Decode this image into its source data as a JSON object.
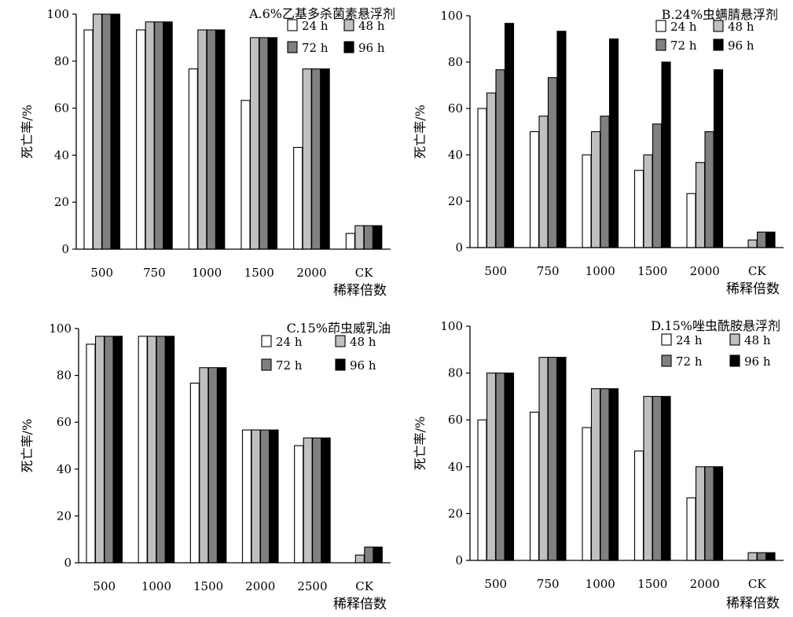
{
  "chart_data": [
    {
      "type": "bar",
      "title": "A.6%乙基多杀菌素悬浮剂",
      "xlabel": "稀释倍数",
      "ylabel": "死亡率/%",
      "ylim": [
        0,
        100
      ],
      "yticks": [
        0,
        20,
        40,
        60,
        80,
        100
      ],
      "categories": [
        "500",
        "750",
        "1000",
        "1500",
        "2000",
        "CK"
      ],
      "legend_position": "top-right",
      "series": [
        {
          "name": "24 h",
          "color": "#ffffff",
          "values": [
            93.3,
            93.3,
            76.7,
            63.3,
            43.3,
            6.7
          ]
        },
        {
          "name": "48 h",
          "color": "#c0c0c0",
          "values": [
            100,
            96.7,
            93.3,
            90,
            76.7,
            10
          ]
        },
        {
          "name": "72 h",
          "color": "#808080",
          "values": [
            100,
            96.7,
            93.3,
            90,
            76.7,
            10
          ]
        },
        {
          "name": "96 h",
          "color": "#000000",
          "values": [
            100,
            96.7,
            93.3,
            90,
            76.7,
            10
          ]
        }
      ]
    },
    {
      "type": "bar",
      "title": "B.24%虫螨腈悬浮剂",
      "xlabel": "稀释倍数",
      "ylabel": "死亡率/%",
      "ylim": [
        0,
        100
      ],
      "yticks": [
        0,
        20,
        40,
        60,
        80,
        100
      ],
      "categories": [
        "500",
        "750",
        "1000",
        "1500",
        "2000",
        "CK"
      ],
      "legend_position": "top-right",
      "series": [
        {
          "name": "24 h",
          "color": "#ffffff",
          "values": [
            60,
            50,
            40,
            33.3,
            23.3,
            0
          ]
        },
        {
          "name": "48 h",
          "color": "#c0c0c0",
          "values": [
            66.7,
            56.7,
            50,
            40,
            36.7,
            3.3
          ]
        },
        {
          "name": "72 h",
          "color": "#808080",
          "values": [
            76.7,
            73.3,
            56.7,
            53.3,
            50,
            6.7
          ]
        },
        {
          "name": "96 h",
          "color": "#000000",
          "values": [
            96.7,
            93.3,
            90,
            80,
            76.7,
            6.7
          ]
        }
      ]
    },
    {
      "type": "bar",
      "title": "C.15%茚虫威乳油",
      "xlabel": "稀释倍数",
      "ylabel": "死亡率/%",
      "ylim": [
        0,
        100
      ],
      "yticks": [
        0,
        20,
        40,
        60,
        80,
        100
      ],
      "categories": [
        "500",
        "1000",
        "1500",
        "2000",
        "2500",
        "CK"
      ],
      "legend_position": "top-right",
      "series": [
        {
          "name": "24 h",
          "color": "#ffffff",
          "values": [
            93.3,
            96.7,
            76.7,
            56.7,
            50,
            0
          ]
        },
        {
          "name": "48 h",
          "color": "#c0c0c0",
          "values": [
            96.7,
            96.7,
            83.3,
            56.7,
            53.3,
            3.3
          ]
        },
        {
          "name": "72 h",
          "color": "#808080",
          "values": [
            96.7,
            96.7,
            83.3,
            56.7,
            53.3,
            6.7
          ]
        },
        {
          "name": "96 h",
          "color": "#000000",
          "values": [
            96.7,
            96.7,
            83.3,
            56.7,
            53.3,
            6.7
          ]
        }
      ]
    },
    {
      "type": "bar",
      "title": "D.15%唑虫酰胺悬浮剂",
      "xlabel": "稀释倍数",
      "ylabel": "死亡率/%",
      "ylim": [
        0,
        100
      ],
      "yticks": [
        0,
        20,
        40,
        60,
        80,
        100
      ],
      "categories": [
        "500",
        "750",
        "1000",
        "1500",
        "2000",
        "CK"
      ],
      "legend_position": "top-right",
      "series": [
        {
          "name": "24 h",
          "color": "#ffffff",
          "values": [
            60,
            63.3,
            56.7,
            46.7,
            26.7,
            0
          ]
        },
        {
          "name": "48 h",
          "color": "#c0c0c0",
          "values": [
            80,
            86.7,
            73.3,
            70,
            40,
            3.3
          ]
        },
        {
          "name": "72 h",
          "color": "#808080",
          "values": [
            80,
            86.7,
            73.3,
            70,
            40,
            3.3
          ]
        },
        {
          "name": "96 h",
          "color": "#000000",
          "values": [
            80,
            86.7,
            73.3,
            70,
            40,
            3.3
          ]
        }
      ]
    }
  ]
}
